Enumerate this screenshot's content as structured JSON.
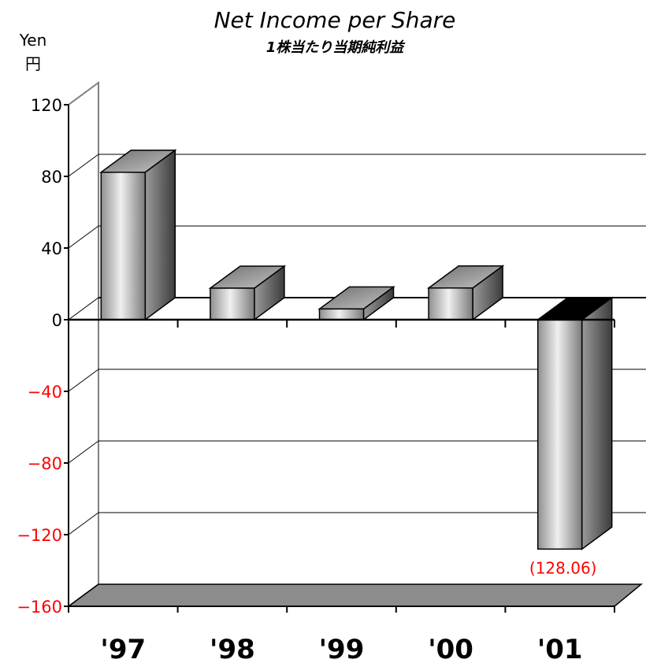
{
  "chart_data": {
    "type": "bar",
    "title": "Net Income per Share",
    "subtitle": "1株当たり当期純利益",
    "unit_label_en": "Yen",
    "unit_label_ja": "円",
    "categories": [
      "'97",
      "'98",
      "'99",
      "'00",
      "'01"
    ],
    "values": [
      82.3,
      17.6,
      6.0,
      17.7,
      -128.06
    ],
    "data_labels": [
      {
        "index": 4,
        "text": "(128.06)"
      }
    ],
    "ylim": [
      -160,
      120
    ],
    "yticks": [
      120,
      80,
      40,
      0,
      -40,
      -80,
      -120,
      -160
    ],
    "grid": true,
    "style": "3d-column",
    "colors": {
      "negative_tick": "#ff0000",
      "positive_tick": "#000000",
      "gridline": "#000000",
      "floor": "#8c8c8c",
      "bar_front_light": "#e6e6e6",
      "bar_front_dark": "#7a7a7a",
      "bar_side": "#4d4d4d",
      "bar_top": "#a6a6a6"
    }
  }
}
